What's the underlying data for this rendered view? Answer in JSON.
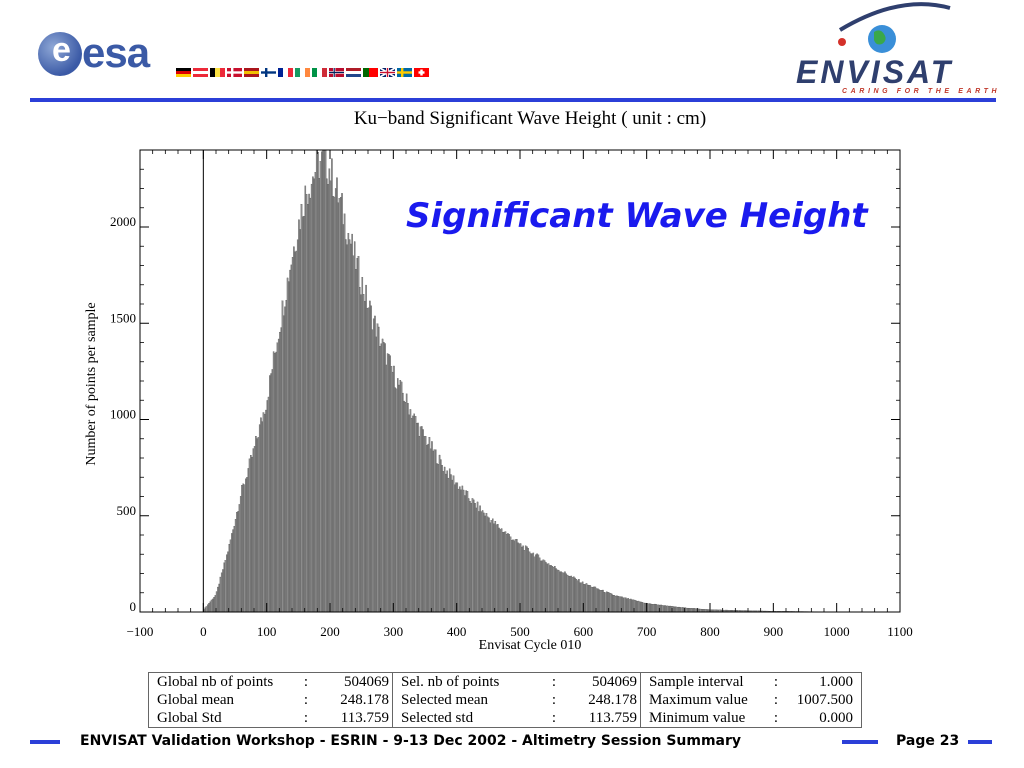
{
  "header": {
    "esa_logo": {
      "text": "esa",
      "icon": "esa-globe-icon"
    },
    "member_flags": [
      {
        "country": "Germany",
        "colors": [
          "#000000",
          "#dd0000",
          "#ffce00"
        ],
        "layout": "h"
      },
      {
        "country": "Austria",
        "colors": [
          "#ed2939",
          "#ffffff",
          "#ed2939"
        ],
        "layout": "h"
      },
      {
        "country": "Belgium",
        "colors": [
          "#000000",
          "#fae042",
          "#ed2939"
        ],
        "layout": "v"
      },
      {
        "country": "Denmark",
        "colors": [
          "#c8102e",
          "#ffffff"
        ],
        "layout": "cross"
      },
      {
        "country": "Spain",
        "colors": [
          "#aa151b",
          "#f1bf00",
          "#aa151b"
        ],
        "layout": "h"
      },
      {
        "country": "Finland",
        "colors": [
          "#ffffff",
          "#003580"
        ],
        "layout": "cross"
      },
      {
        "country": "France",
        "colors": [
          "#002395",
          "#ffffff",
          "#ed2939"
        ],
        "layout": "v"
      },
      {
        "country": "Ireland",
        "colors": [
          "#169b62",
          "#ffffff",
          "#ff883e"
        ],
        "layout": "v"
      },
      {
        "country": "Italy",
        "colors": [
          "#009246",
          "#ffffff",
          "#ce2b37"
        ],
        "layout": "v"
      },
      {
        "country": "Norway",
        "colors": [
          "#ba0c2f",
          "#ffffff",
          "#00205b"
        ],
        "layout": "cross"
      },
      {
        "country": "Netherlands",
        "colors": [
          "#ae1c28",
          "#ffffff",
          "#21468b"
        ],
        "layout": "h"
      },
      {
        "country": "Portugal",
        "colors": [
          "#006600",
          "#ff0000"
        ],
        "layout": "v2"
      },
      {
        "country": "United Kingdom",
        "colors": [
          "#012169",
          "#ffffff",
          "#c8102e"
        ],
        "layout": "uk"
      },
      {
        "country": "Sweden",
        "colors": [
          "#006aa7",
          "#fecc00"
        ],
        "layout": "cross"
      },
      {
        "country": "Switzerland",
        "colors": [
          "#ff0000",
          "#ffffff"
        ],
        "layout": "swiss"
      }
    ],
    "envisat_logo": {
      "word": "ENVISAT",
      "tagline": "CARING FOR THE EARTH",
      "icon": "earth-globe-icon"
    },
    "rule_color": "#2b3fd8"
  },
  "chart_data": {
    "type": "bar",
    "title": "Ku−band Significant Wave Height  ( unit : cm)",
    "overlay_title": "Significant Wave Height",
    "xlabel": "Envisat Cycle 010",
    "ylabel": "Number of points per sample",
    "xlim": [
      -100,
      1100
    ],
    "ylim": [
      0,
      2400
    ],
    "x_ticks": [
      "−100",
      "0",
      "100",
      "200",
      "300",
      "400",
      "500",
      "600",
      "700",
      "800",
      "900",
      "1000",
      "1100"
    ],
    "x_tick_values": [
      -100,
      0,
      100,
      200,
      300,
      400,
      500,
      600,
      700,
      800,
      900,
      1000,
      1100
    ],
    "y_ticks": [
      "0",
      "500",
      "1000",
      "1500",
      "2000"
    ],
    "y_tick_values": [
      0,
      500,
      1000,
      1500,
      2000
    ],
    "grid": false,
    "bar_color": "#8c8c8c",
    "bin_width": 2,
    "x": [
      0,
      20,
      40,
      60,
      80,
      100,
      120,
      140,
      160,
      180,
      190,
      200,
      220,
      240,
      260,
      280,
      300,
      340,
      380,
      420,
      460,
      500,
      550,
      600,
      650,
      700,
      750,
      800,
      900,
      1000,
      1008
    ],
    "values": [
      10,
      90,
      330,
      620,
      840,
      1100,
      1480,
      1850,
      2160,
      2320,
      2350,
      2300,
      2080,
      1830,
      1600,
      1410,
      1240,
      960,
      750,
      590,
      460,
      350,
      240,
      150,
      85,
      45,
      25,
      12,
      4,
      1,
      0
    ]
  },
  "stats": {
    "rows": [
      [
        "Global nb of points",
        ":",
        "504069",
        "Sel. nb of points",
        ":",
        "504069",
        "Sample interval",
        ":",
        "1.000"
      ],
      [
        "Global mean",
        ":",
        "248.178",
        "Selected mean",
        ":",
        "248.178",
        "Maximum value",
        ":",
        "1007.500"
      ],
      [
        "Global Std",
        ":",
        "113.759",
        "Selected std",
        ":",
        "113.759",
        "Minimum value",
        ":",
        "0.000"
      ]
    ]
  },
  "footer": {
    "text": "ENVISAT Validation Workshop - ESRIN - 9-13 Dec 2002 - Altimetry Session Summary",
    "page": "Page 23"
  }
}
